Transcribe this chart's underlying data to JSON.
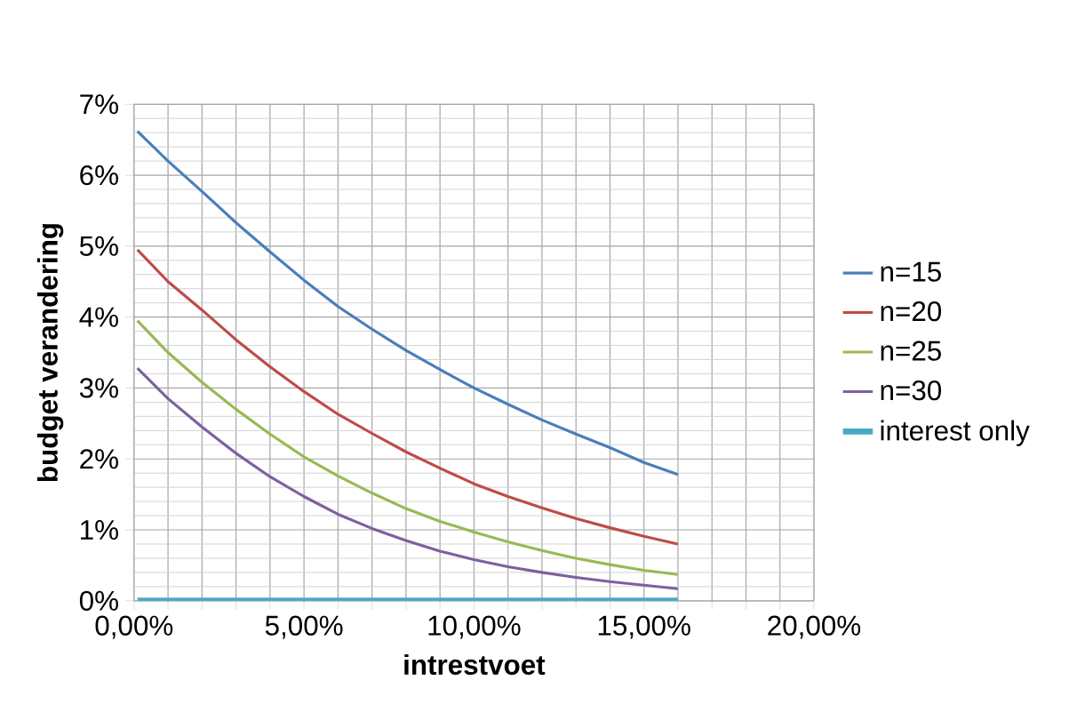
{
  "chart_data": {
    "type": "line",
    "xlabel": "intrestvoet",
    "ylabel": "budget verandering",
    "x": [
      0.1,
      1,
      2,
      3,
      4,
      5,
      6,
      7,
      8,
      9,
      10,
      11,
      12,
      13,
      14,
      15,
      16
    ],
    "series": [
      {
        "name": "n=15",
        "color": "#4a7ebb",
        "values": [
          6.62,
          6.2,
          5.77,
          5.33,
          4.92,
          4.52,
          4.15,
          3.83,
          3.53,
          3.26,
          3.0,
          2.77,
          2.55,
          2.35,
          2.16,
          1.95,
          1.78
        ]
      },
      {
        "name": "n=20",
        "color": "#be4b48",
        "values": [
          4.95,
          4.5,
          4.1,
          3.68,
          3.3,
          2.95,
          2.63,
          2.36,
          2.1,
          1.87,
          1.65,
          1.47,
          1.31,
          1.16,
          1.03,
          0.91,
          0.8
        ]
      },
      {
        "name": "n=25",
        "color": "#98b954",
        "values": [
          3.95,
          3.5,
          3.08,
          2.7,
          2.35,
          2.03,
          1.76,
          1.52,
          1.3,
          1.12,
          0.97,
          0.83,
          0.71,
          0.6,
          0.51,
          0.43,
          0.37
        ]
      },
      {
        "name": "n=30",
        "color": "#7d60a0",
        "values": [
          3.28,
          2.85,
          2.45,
          2.08,
          1.75,
          1.47,
          1.22,
          1.02,
          0.85,
          0.7,
          0.58,
          0.48,
          0.4,
          0.33,
          0.27,
          0.22,
          0.17
        ]
      },
      {
        "name": "interest only",
        "color": "#46aac5",
        "values": [
          0,
          0,
          0,
          0,
          0,
          0,
          0,
          0,
          0,
          0,
          0,
          0,
          0,
          0,
          0,
          0,
          0
        ]
      }
    ],
    "xlim": [
      0,
      20
    ],
    "ylim": [
      0,
      7
    ],
    "xticks": [
      {
        "value": 0,
        "label": "0,00%"
      },
      {
        "value": 1,
        "label": null
      },
      {
        "value": 2,
        "label": null
      },
      {
        "value": 3,
        "label": null
      },
      {
        "value": 4,
        "label": null
      },
      {
        "value": 5,
        "label": "5,00%"
      },
      {
        "value": 6,
        "label": null
      },
      {
        "value": 7,
        "label": null
      },
      {
        "value": 8,
        "label": null
      },
      {
        "value": 9,
        "label": null
      },
      {
        "value": 10,
        "label": "10,00%"
      },
      {
        "value": 11,
        "label": null
      },
      {
        "value": 12,
        "label": null
      },
      {
        "value": 13,
        "label": null
      },
      {
        "value": 14,
        "label": null
      },
      {
        "value": 15,
        "label": "15,00%"
      },
      {
        "value": 16,
        "label": null
      },
      {
        "value": 17,
        "label": null
      },
      {
        "value": 18,
        "label": null
      },
      {
        "value": 19,
        "label": null
      },
      {
        "value": 20,
        "label": "20,00%"
      }
    ],
    "yticks": [
      {
        "value": 0,
        "label": "0%"
      },
      {
        "value": 1,
        "label": "1%"
      },
      {
        "value": 2,
        "label": "2%"
      },
      {
        "value": 3,
        "label": "3%"
      },
      {
        "value": 4,
        "label": "4%"
      },
      {
        "value": 5,
        "label": "5%"
      },
      {
        "value": 6,
        "label": "6%"
      },
      {
        "value": 7,
        "label": "7%"
      }
    ],
    "grid": true,
    "legend": "right",
    "marker": "none",
    "line_style": "solid"
  }
}
